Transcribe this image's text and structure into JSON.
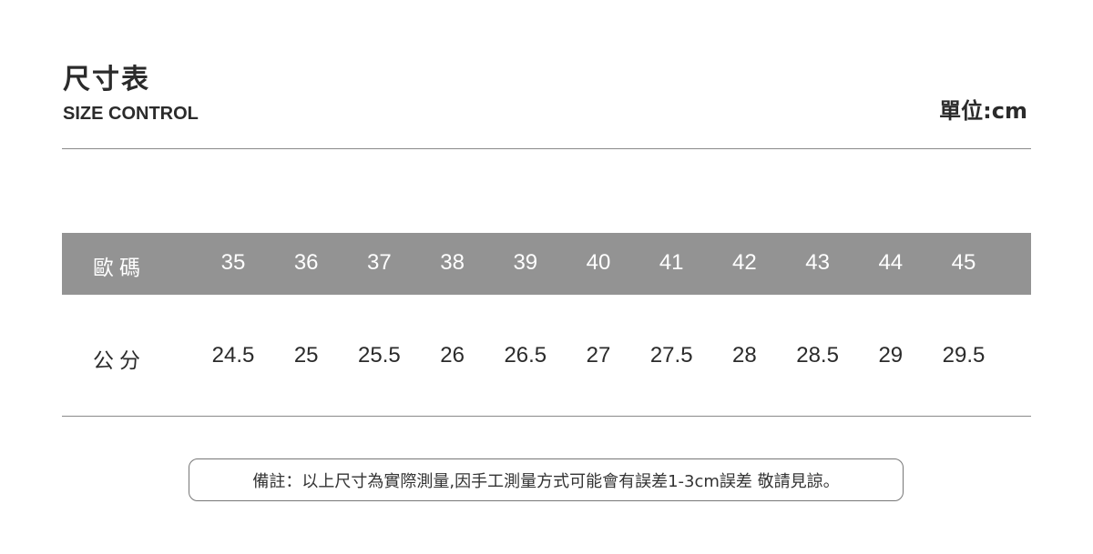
{
  "header": {
    "title": "尺寸表",
    "subtitle": "SIZE CONTROL",
    "unit": "單位:cm"
  },
  "table": {
    "row_labels": [
      "歐碼",
      "公分"
    ],
    "eu_sizes": [
      "35",
      "36",
      "37",
      "38",
      "39",
      "40",
      "41",
      "42",
      "43",
      "44",
      "45"
    ],
    "cm_sizes": [
      "24.5",
      "25",
      "25.5",
      "26",
      "26.5",
      "27",
      "27.5",
      "28",
      "28.5",
      "29",
      "29.5"
    ],
    "header_bg": "#939393"
  },
  "note": "備註：以上尺寸為實際測量,因手工測量方式可能會有誤差1-3cm誤差 敬請見諒。"
}
